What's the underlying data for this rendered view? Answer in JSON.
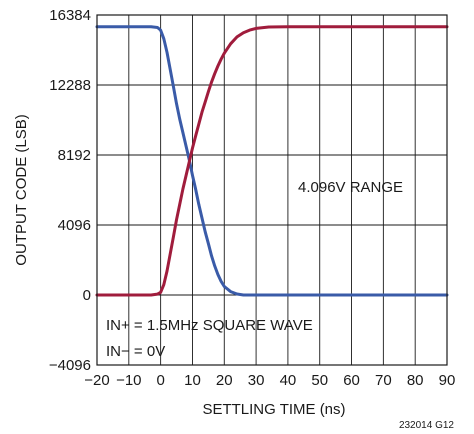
{
  "chart_data": {
    "type": "line",
    "title": "",
    "xlabel": "SETTLING TIME (ns)",
    "ylabel": "OUTPUT CODE (LSB)",
    "xlim": [
      -20,
      90
    ],
    "ylim": [
      -4096,
      16384
    ],
    "grid": true,
    "x_ticks": [
      -20,
      -10,
      0,
      10,
      20,
      30,
      40,
      50,
      60,
      70,
      80,
      90
    ],
    "x_tick_labels": [
      "−20",
      "−10",
      "0",
      "10",
      "20",
      "30",
      "40",
      "50",
      "60",
      "70",
      "80",
      "90"
    ],
    "y_ticks": [
      -4096,
      0,
      4096,
      8192,
      12288,
      16384
    ],
    "y_tick_labels": [
      "−4096",
      "0",
      "4096",
      "8192",
      "12288",
      "16384"
    ],
    "annotations": [
      {
        "text": "4.096V RANGE"
      },
      {
        "text": "IN+ = 1.5MHz SQUARE WAVE"
      },
      {
        "text": "IN− = 0V"
      }
    ],
    "figure_id": "232014 G12",
    "series": [
      {
        "color": "#3a5ba8",
        "points": [
          [
            -20,
            15700
          ],
          [
            -10,
            15700
          ],
          [
            -3,
            15700
          ],
          [
            -1,
            15650
          ],
          [
            0,
            15500
          ],
          [
            1,
            15000
          ],
          [
            2,
            14200
          ],
          [
            3,
            13200
          ],
          [
            4,
            12200
          ],
          [
            5,
            11200
          ],
          [
            6,
            10300
          ],
          [
            7,
            9500
          ],
          [
            8,
            8700
          ],
          [
            9,
            7900
          ],
          [
            10,
            7000
          ],
          [
            11,
            6200
          ],
          [
            12,
            5300
          ],
          [
            13,
            4500
          ],
          [
            14,
            3700
          ],
          [
            15,
            3000
          ],
          [
            16,
            2300
          ],
          [
            17,
            1700
          ],
          [
            18,
            1200
          ],
          [
            19,
            800
          ],
          [
            20,
            500
          ],
          [
            22,
            200
          ],
          [
            24,
            60
          ],
          [
            26,
            0
          ],
          [
            90,
            0
          ]
        ]
      },
      {
        "color": "#a01c3c",
        "points": [
          [
            -20,
            0
          ],
          [
            -10,
            0
          ],
          [
            -3,
            0
          ],
          [
            -1,
            50
          ],
          [
            0,
            150
          ],
          [
            1,
            600
          ],
          [
            2,
            1400
          ],
          [
            3,
            2400
          ],
          [
            4,
            3400
          ],
          [
            5,
            4400
          ],
          [
            6,
            5300
          ],
          [
            7,
            6200
          ],
          [
            8,
            7000
          ],
          [
            9,
            7800
          ],
          [
            10,
            8600
          ],
          [
            11,
            9300
          ],
          [
            12,
            10000
          ],
          [
            13,
            10700
          ],
          [
            14,
            11300
          ],
          [
            15,
            11900
          ],
          [
            16,
            12450
          ],
          [
            17,
            12950
          ],
          [
            18,
            13400
          ],
          [
            19,
            13800
          ],
          [
            20,
            14150
          ],
          [
            22,
            14700
          ],
          [
            24,
            15100
          ],
          [
            26,
            15350
          ],
          [
            28,
            15500
          ],
          [
            30,
            15600
          ],
          [
            34,
            15680
          ],
          [
            40,
            15700
          ],
          [
            90,
            15700
          ]
        ]
      }
    ]
  }
}
